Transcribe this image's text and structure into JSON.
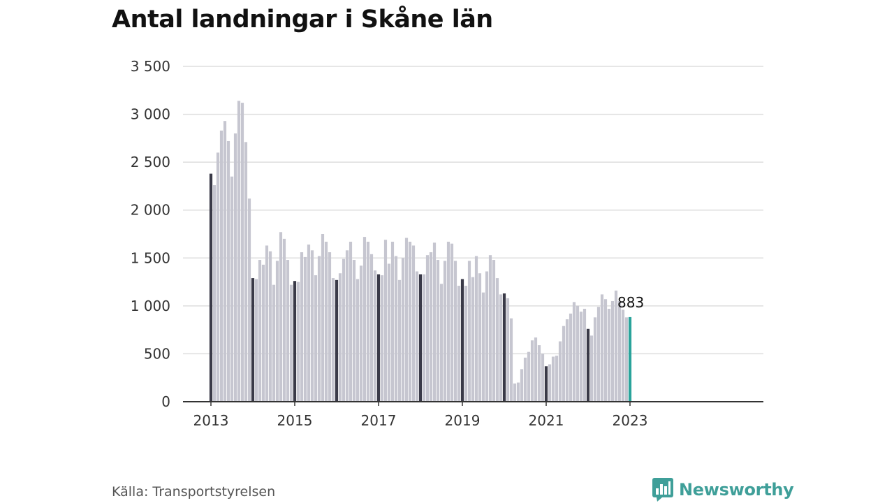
{
  "brand": {
    "name": "Newsworthy",
    "color": "#3f9f99",
    "icon": "bar-chart-speech-bubble-icon"
  },
  "source": "Källa: Transportstyrelsen",
  "chart_data": {
    "type": "bar",
    "title": "Antal landningar i Skåne län",
    "xlabel": "",
    "ylabel": "",
    "ylim": [
      0,
      3500
    ],
    "yticks": [
      0,
      500,
      1000,
      1500,
      2000,
      2500,
      3000,
      3500
    ],
    "ytick_labels": [
      "0",
      "500",
      "1 000",
      "1 500",
      "2 000",
      "2 500",
      "3 000",
      "3 500"
    ],
    "xtick_labels": [
      "2013",
      "2015",
      "2017",
      "2019",
      "2021",
      "2023"
    ],
    "grid": "horizontal",
    "legend": "none",
    "colors": {
      "default": "#c6c6d0",
      "january": "#3a3a48",
      "latest": "#2aa39b",
      "grid": "#dedede",
      "axis": "#333333"
    },
    "x": [
      "2013-01",
      "2013-02",
      "2013-03",
      "2013-04",
      "2013-05",
      "2013-06",
      "2013-07",
      "2013-08",
      "2013-09",
      "2013-10",
      "2013-11",
      "2013-12",
      "2014-01",
      "2014-02",
      "2014-03",
      "2014-04",
      "2014-05",
      "2014-06",
      "2014-07",
      "2014-08",
      "2014-09",
      "2014-10",
      "2014-11",
      "2014-12",
      "2015-01",
      "2015-02",
      "2015-03",
      "2015-04",
      "2015-05",
      "2015-06",
      "2015-07",
      "2015-08",
      "2015-09",
      "2015-10",
      "2015-11",
      "2015-12",
      "2016-01",
      "2016-02",
      "2016-03",
      "2016-04",
      "2016-05",
      "2016-06",
      "2016-07",
      "2016-08",
      "2016-09",
      "2016-10",
      "2016-11",
      "2016-12",
      "2017-01",
      "2017-02",
      "2017-03",
      "2017-04",
      "2017-05",
      "2017-06",
      "2017-07",
      "2017-08",
      "2017-09",
      "2017-10",
      "2017-11",
      "2017-12",
      "2018-01",
      "2018-02",
      "2018-03",
      "2018-04",
      "2018-05",
      "2018-06",
      "2018-07",
      "2018-08",
      "2018-09",
      "2018-10",
      "2018-11",
      "2018-12",
      "2019-01",
      "2019-02",
      "2019-03",
      "2019-04",
      "2019-05",
      "2019-06",
      "2019-07",
      "2019-08",
      "2019-09",
      "2019-10",
      "2019-11",
      "2019-12",
      "2020-01",
      "2020-02",
      "2020-03",
      "2020-04",
      "2020-05",
      "2020-06",
      "2020-07",
      "2020-08",
      "2020-09",
      "2020-10",
      "2020-11",
      "2020-12",
      "2021-01",
      "2021-02",
      "2021-03",
      "2021-04",
      "2021-05",
      "2021-06",
      "2021-07",
      "2021-08",
      "2021-09",
      "2021-10",
      "2021-11",
      "2021-12",
      "2022-01",
      "2022-02",
      "2022-03",
      "2022-04",
      "2022-05",
      "2022-06",
      "2022-07",
      "2022-08",
      "2022-09",
      "2022-10",
      "2022-11",
      "2022-12",
      "2023-01"
    ],
    "values": [
      2380,
      2260,
      2600,
      2830,
      2930,
      2720,
      2350,
      2800,
      3140,
      3120,
      2710,
      2120,
      1290,
      1280,
      1480,
      1430,
      1630,
      1570,
      1220,
      1470,
      1770,
      1700,
      1480,
      1220,
      1260,
      1250,
      1560,
      1510,
      1640,
      1580,
      1320,
      1520,
      1750,
      1670,
      1560,
      1290,
      1270,
      1340,
      1490,
      1580,
      1670,
      1480,
      1280,
      1420,
      1720,
      1670,
      1540,
      1370,
      1330,
      1320,
      1690,
      1440,
      1670,
      1520,
      1270,
      1500,
      1710,
      1670,
      1630,
      1360,
      1330,
      1330,
      1530,
      1560,
      1660,
      1480,
      1230,
      1470,
      1670,
      1650,
      1470,
      1210,
      1280,
      1210,
      1470,
      1300,
      1520,
      1340,
      1140,
      1360,
      1530,
      1480,
      1290,
      1120,
      1130,
      1080,
      870,
      190,
      200,
      340,
      460,
      520,
      640,
      670,
      590,
      500,
      370,
      390,
      470,
      480,
      630,
      790,
      860,
      920,
      1040,
      1000,
      940,
      970,
      760,
      690,
      880,
      990,
      1120,
      1070,
      970,
      1050,
      1160,
      1050,
      960,
      880,
      883
    ],
    "annotations": [
      {
        "x": "2023-01",
        "label": "883"
      }
    ]
  }
}
